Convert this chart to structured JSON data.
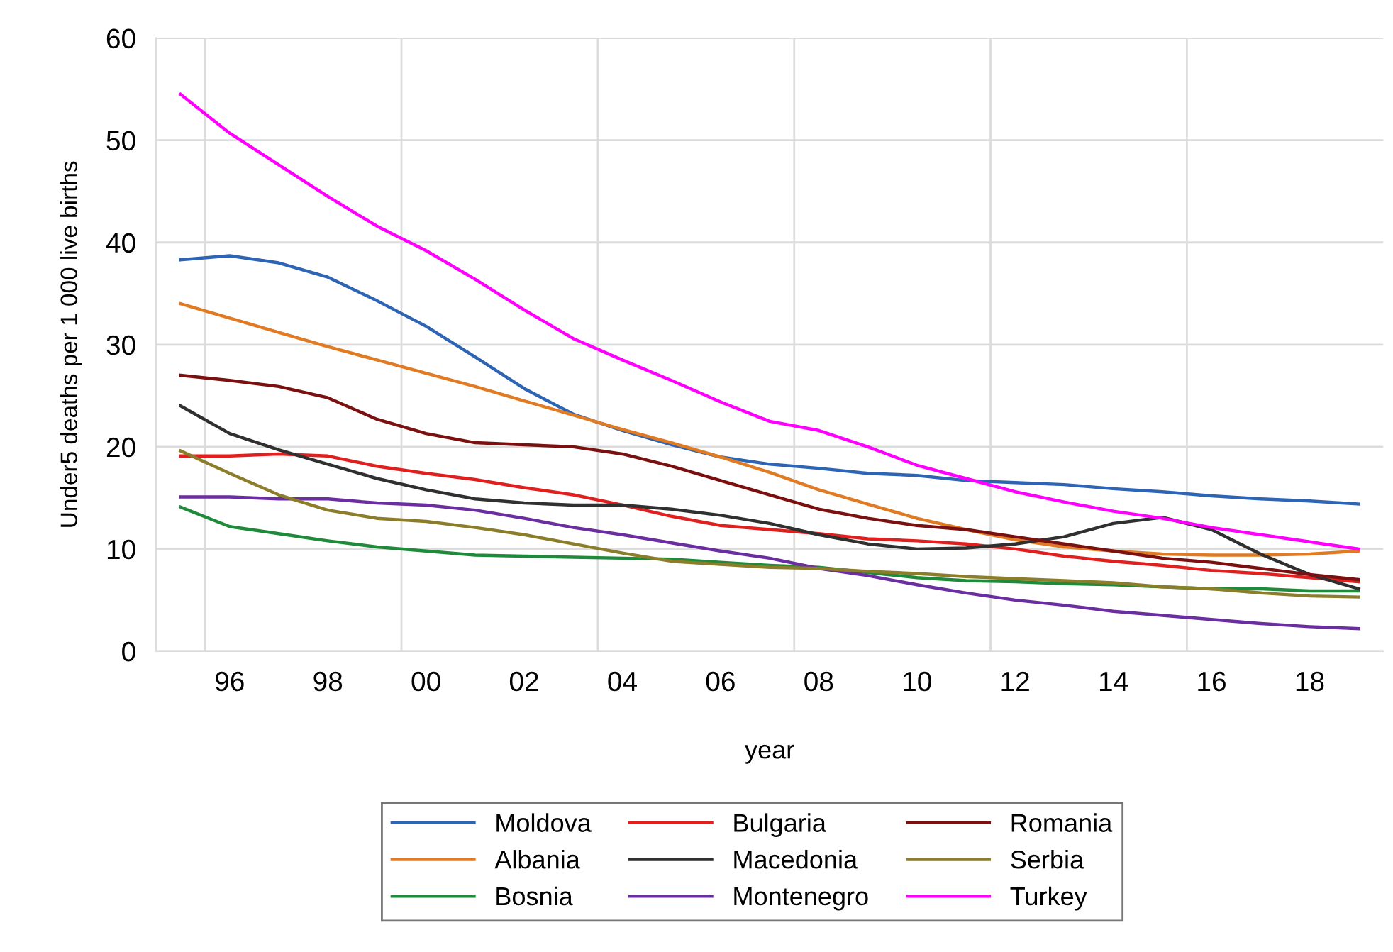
{
  "chart_data": {
    "type": "line",
    "xlabel": "year",
    "ylabel": "Under5 deaths per 1 000 live births",
    "x": [
      1995,
      1996,
      1997,
      1998,
      1999,
      2000,
      2001,
      2002,
      2003,
      2004,
      2005,
      2006,
      2007,
      2008,
      2009,
      2010,
      2011,
      2012,
      2013,
      2014,
      2015,
      2016,
      2017,
      2018,
      2019
    ],
    "xlim": [
      1994.5,
      2019.5
    ],
    "xticks": [
      {
        "value": 1995.5,
        "label": null
      },
      {
        "value": 1996,
        "label": "96"
      },
      {
        "value": 1998,
        "label": "98"
      },
      {
        "value": 1999.5,
        "label": null
      },
      {
        "value": 2000,
        "label": "00"
      },
      {
        "value": 2002,
        "label": "02"
      },
      {
        "value": 2003.5,
        "label": null
      },
      {
        "value": 2004,
        "label": "04"
      },
      {
        "value": 2006,
        "label": "06"
      },
      {
        "value": 2007.5,
        "label": null
      },
      {
        "value": 2008,
        "label": "08"
      },
      {
        "value": 2010,
        "label": "10"
      },
      {
        "value": 2011.5,
        "label": null
      },
      {
        "value": 2012,
        "label": "12"
      },
      {
        "value": 2014,
        "label": "14"
      },
      {
        "value": 2015.5,
        "label": null
      },
      {
        "value": 2016,
        "label": "16"
      },
      {
        "value": 2018,
        "label": "18"
      }
    ],
    "ylim": [
      0,
      60
    ],
    "yticks": [
      0,
      10,
      20,
      30,
      40,
      50,
      60
    ],
    "grid": true,
    "legend": "bottom",
    "marker": "none",
    "line_style": "solid",
    "series": [
      {
        "name": "Moldova",
        "color": "#2e64b4",
        "values": [
          38.3,
          38.7,
          38.0,
          36.6,
          34.3,
          31.8,
          28.8,
          25.7,
          23.2,
          21.6,
          20.2,
          19.0,
          18.3,
          17.9,
          17.4,
          17.2,
          16.7,
          16.5,
          16.3,
          15.9,
          15.6,
          15.2,
          14.9,
          14.7,
          14.4
        ]
      },
      {
        "name": "Albania",
        "color": "#e07b24",
        "values": [
          34.0,
          32.6,
          31.2,
          29.8,
          28.5,
          27.2,
          25.9,
          24.5,
          23.1,
          21.7,
          20.4,
          19.0,
          17.5,
          15.8,
          14.4,
          13.0,
          11.9,
          10.9,
          10.2,
          9.8,
          9.5,
          9.4,
          9.4,
          9.5,
          9.8
        ]
      },
      {
        "name": "Bosnia",
        "color": "#1e8a3a",
        "values": [
          14.1,
          12.2,
          11.5,
          10.8,
          10.2,
          9.8,
          9.4,
          9.3,
          9.2,
          9.1,
          9.0,
          8.7,
          8.4,
          8.2,
          7.7,
          7.2,
          6.9,
          6.8,
          6.6,
          6.5,
          6.3,
          6.1,
          6.1,
          5.9,
          5.9
        ]
      },
      {
        "name": "Bulgaria",
        "color": "#e0201f",
        "values": [
          19.1,
          19.1,
          19.3,
          19.1,
          18.1,
          17.4,
          16.8,
          16.0,
          15.3,
          14.3,
          13.2,
          12.3,
          11.9,
          11.5,
          11.0,
          10.8,
          10.5,
          10.0,
          9.3,
          8.8,
          8.4,
          7.9,
          7.6,
          7.2,
          6.8
        ]
      },
      {
        "name": "Macedonia",
        "color": "#303030",
        "values": [
          24.0,
          21.3,
          19.7,
          18.3,
          16.9,
          15.8,
          14.9,
          14.5,
          14.3,
          14.3,
          13.9,
          13.3,
          12.5,
          11.4,
          10.5,
          10.0,
          10.1,
          10.5,
          11.2,
          12.5,
          13.1,
          11.9,
          9.5,
          7.5,
          6.1
        ]
      },
      {
        "name": "Montenegro",
        "color": "#6a2ea0",
        "values": [
          15.1,
          15.1,
          14.9,
          14.9,
          14.5,
          14.3,
          13.8,
          13.0,
          12.1,
          11.4,
          10.6,
          9.8,
          9.1,
          8.1,
          7.4,
          6.5,
          5.7,
          5.0,
          4.5,
          3.9,
          3.5,
          3.1,
          2.7,
          2.4,
          2.2
        ]
      },
      {
        "name": "Romania",
        "color": "#7b1010",
        "values": [
          27.0,
          26.5,
          25.9,
          24.8,
          22.7,
          21.3,
          20.4,
          20.2,
          20.0,
          19.3,
          18.1,
          16.7,
          15.3,
          13.9,
          13.0,
          12.3,
          11.9,
          11.2,
          10.5,
          9.8,
          9.1,
          8.7,
          8.1,
          7.5,
          7.0
        ]
      },
      {
        "name": "Serbia",
        "color": "#8b7d2a",
        "values": [
          19.6,
          17.4,
          15.3,
          13.8,
          13.0,
          12.7,
          12.1,
          11.4,
          10.5,
          9.6,
          8.8,
          8.5,
          8.2,
          8.1,
          7.8,
          7.6,
          7.3,
          7.1,
          6.9,
          6.7,
          6.3,
          6.1,
          5.7,
          5.4,
          5.3
        ]
      },
      {
        "name": "Turkey",
        "color": "#ff00ff",
        "values": [
          54.5,
          50.7,
          47.6,
          44.5,
          41.6,
          39.2,
          36.4,
          33.4,
          30.6,
          28.5,
          26.5,
          24.4,
          22.5,
          21.6,
          20.0,
          18.2,
          16.9,
          15.6,
          14.6,
          13.7,
          13.0,
          12.1,
          11.4,
          10.7,
          10.0
        ]
      }
    ]
  }
}
